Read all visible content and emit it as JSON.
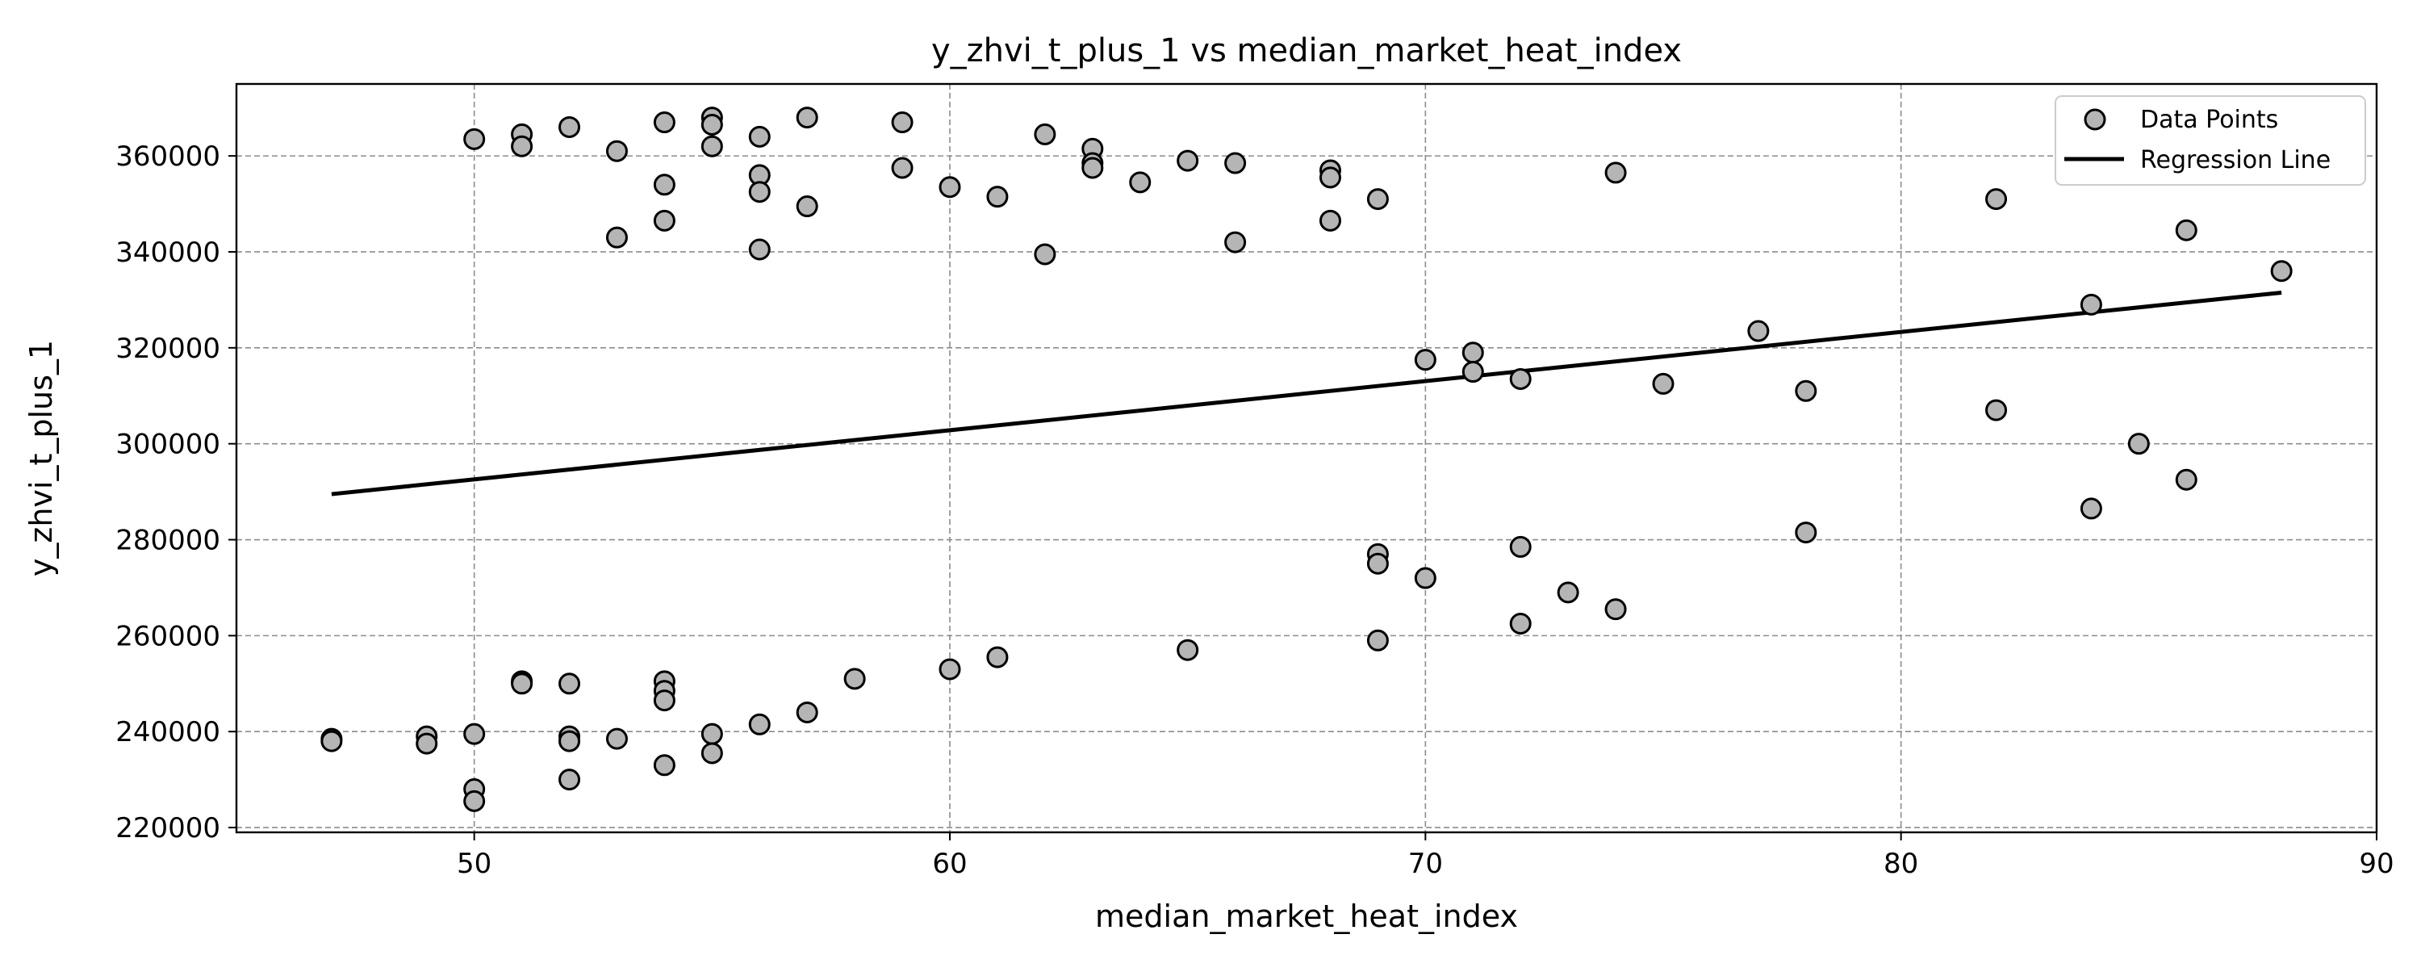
{
  "chart_data": {
    "type": "scatter",
    "title": "y_zhvi_t_plus_1 vs median_market_heat_index",
    "xlabel": "median_market_heat_index",
    "ylabel": "y_zhvi_t_plus_1",
    "xlim": [
      45,
      90
    ],
    "ylim": [
      219000,
      375000
    ],
    "xticks": [
      50,
      60,
      70,
      80,
      90
    ],
    "yticks": [
      220000,
      240000,
      260000,
      280000,
      300000,
      320000,
      340000,
      360000
    ],
    "grid": true,
    "legend_position": "top-right",
    "series": [
      {
        "name": "Data Points",
        "kind": "scatter",
        "color": "#b5b5b5",
        "edgecolor": "#000000",
        "points": [
          [
            47,
            238500
          ],
          [
            47,
            238000
          ],
          [
            49,
            239000
          ],
          [
            49,
            237500
          ],
          [
            50,
            239500
          ],
          [
            50,
            228000
          ],
          [
            50,
            225500
          ],
          [
            50,
            363500
          ],
          [
            51,
            250500
          ],
          [
            51,
            250000
          ],
          [
            51,
            364500
          ],
          [
            51,
            362000
          ],
          [
            52,
            250000
          ],
          [
            52,
            239000
          ],
          [
            52,
            238000
          ],
          [
            52,
            230000
          ],
          [
            52,
            366000
          ],
          [
            53,
            238500
          ],
          [
            53,
            361000
          ],
          [
            53,
            343000
          ],
          [
            54,
            250500
          ],
          [
            54,
            248500
          ],
          [
            54,
            246500
          ],
          [
            54,
            233000
          ],
          [
            54,
            367000
          ],
          [
            54,
            354000
          ],
          [
            54,
            346500
          ],
          [
            55,
            239500
          ],
          [
            55,
            235500
          ],
          [
            55,
            368000
          ],
          [
            55,
            366500
          ],
          [
            55,
            362000
          ],
          [
            56,
            241500
          ],
          [
            56,
            364000
          ],
          [
            56,
            356000
          ],
          [
            56,
            352500
          ],
          [
            56,
            340500
          ],
          [
            57,
            244000
          ],
          [
            57,
            368000
          ],
          [
            57,
            349500
          ],
          [
            58,
            251000
          ],
          [
            59,
            367000
          ],
          [
            59,
            357500
          ],
          [
            60,
            253000
          ],
          [
            60,
            353500
          ],
          [
            61,
            255500
          ],
          [
            61,
            351500
          ],
          [
            62,
            364500
          ],
          [
            62,
            339500
          ],
          [
            63,
            361500
          ],
          [
            63,
            358500
          ],
          [
            63,
            357500
          ],
          [
            64,
            354500
          ],
          [
            65,
            257000
          ],
          [
            65,
            359000
          ],
          [
            66,
            358500
          ],
          [
            66,
            342000
          ],
          [
            68,
            357000
          ],
          [
            68,
            355500
          ],
          [
            68,
            346500
          ],
          [
            69,
            277000
          ],
          [
            69,
            275000
          ],
          [
            69,
            259000
          ],
          [
            69,
            351000
          ],
          [
            70,
            317500
          ],
          [
            70,
            272000
          ],
          [
            71,
            319000
          ],
          [
            71,
            315000
          ],
          [
            72,
            313500
          ],
          [
            72,
            278500
          ],
          [
            72,
            262500
          ],
          [
            73,
            269000
          ],
          [
            74,
            265500
          ],
          [
            74,
            356500
          ],
          [
            75,
            312500
          ],
          [
            77,
            323500
          ],
          [
            78,
            311000
          ],
          [
            78,
            281500
          ],
          [
            82,
            351000
          ],
          [
            82,
            307000
          ],
          [
            84,
            329000
          ],
          [
            84,
            286500
          ],
          [
            85,
            300000
          ],
          [
            86,
            344500
          ],
          [
            86,
            292500
          ],
          [
            88,
            336000
          ]
        ]
      },
      {
        "name": "Regression Line",
        "kind": "line",
        "color": "#000000",
        "x": [
          47,
          88
        ],
        "y": [
          289500,
          331500
        ]
      }
    ]
  }
}
